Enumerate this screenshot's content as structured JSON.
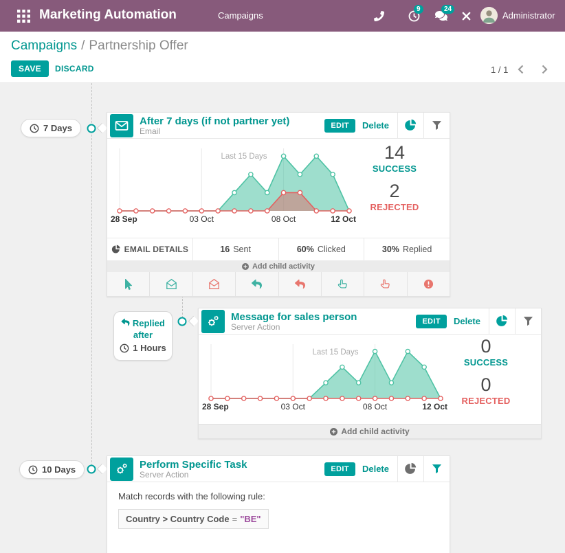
{
  "topbar": {
    "app_title": "Marketing Automation",
    "menu_item": "Campaigns",
    "activities_count": "9",
    "messages_count": "24",
    "user_name": "Administrator"
  },
  "control_panel": {
    "breadcrumb_parent": "Campaigns",
    "breadcrumb_sep": "/",
    "breadcrumb_current": "Partnership Offer",
    "save_label": "SAVE",
    "discard_label": "DISCARD",
    "pager_value": "1 / 1"
  },
  "colors": {
    "topbar": "#875A7B",
    "primary": "#00A09D",
    "link": "#00968F",
    "danger": "#E4605F",
    "chart_success": "#4EC2A4",
    "chart_rejected": "#E4605F",
    "canvas_bg": "#F0F0F0"
  },
  "activities": [
    {
      "badge_text": "7 Days",
      "title": "After 7 days (if not partner yet)",
      "subtitle": "Email",
      "edit_label": "EDIT",
      "delete_label": "Delete",
      "success_value": "14",
      "success_label": "SUCCESS",
      "rejected_value": "2",
      "rejected_label": "REJECTED",
      "details_header": "EMAIL DETAILS",
      "details": [
        {
          "value": "16",
          "label": "Sent"
        },
        {
          "value": "60%",
          "label": "Clicked"
        },
        {
          "value": "30%",
          "label": "Replied"
        }
      ],
      "add_child_label": "Add child activity",
      "quick_add_icons": [
        {
          "name": "mouse-cursor",
          "glyph": "mouse-cursor",
          "tone": "ok"
        },
        {
          "name": "email-opened",
          "glyph": "email-open",
          "tone": "ok"
        },
        {
          "name": "email-not-opened",
          "glyph": "email-open",
          "tone": "ko"
        },
        {
          "name": "replied",
          "glyph": "reply",
          "tone": "ok"
        },
        {
          "name": "not-replied",
          "glyph": "reply",
          "tone": "ko"
        },
        {
          "name": "clicked",
          "glyph": "hand-pointer",
          "tone": "ok"
        },
        {
          "name": "not-clicked",
          "glyph": "hand-pointer",
          "tone": "ko"
        },
        {
          "name": "bounced",
          "glyph": "exclamation-circle",
          "tone": "ko"
        }
      ]
    },
    {
      "badge_trigger_lines": "Replied after",
      "badge_text": "1 Hours",
      "title": "Message for sales person",
      "subtitle": "Server Action",
      "edit_label": "EDIT",
      "delete_label": "Delete",
      "success_value": "0",
      "success_label": "SUCCESS",
      "rejected_value": "0",
      "rejected_label": "REJECTED",
      "add_child_label": "Add child activity"
    },
    {
      "badge_text": "10 Days",
      "title": "Perform Specific Task",
      "subtitle": "Server Action",
      "edit_label": "EDIT",
      "delete_label": "Delete",
      "filter_intro": "Match records with the following rule:",
      "rule_field": "Country > Country Code",
      "rule_op": "=",
      "rule_value": "\"BE\""
    }
  ],
  "chart_data": [
    {
      "type": "area",
      "annotation": "Last 15 Days",
      "x": [
        "28 Sep",
        "29 Sep",
        "30 Sep",
        "01 Oct",
        "02 Oct",
        "03 Oct",
        "04 Oct",
        "05 Oct",
        "06 Oct",
        "07 Oct",
        "08 Oct",
        "09 Oct",
        "10 Oct",
        "11 Oct",
        "12 Oct"
      ],
      "ticks": [
        {
          "i": 0,
          "label": "28 Sep",
          "bold": true,
          "align": "start"
        },
        {
          "i": 5,
          "label": "03 Oct",
          "bold": false,
          "align": "middle"
        },
        {
          "i": 10,
          "label": "08 Oct",
          "bold": false,
          "align": "middle"
        },
        {
          "i": 14,
          "label": "12 Oct",
          "bold": true,
          "align": "end"
        }
      ],
      "ylim": [
        0,
        3.2
      ],
      "grid": true,
      "series": [
        {
          "name": "Success",
          "color": "#4EC2A4",
          "fill_opacity": 0.55,
          "markers": "nonzero",
          "values": [
            0,
            0,
            0,
            0,
            0,
            0,
            0,
            1,
            2,
            1,
            3,
            2,
            3,
            2,
            0
          ]
        },
        {
          "name": "Rejected",
          "color": "#E4605F",
          "fill_opacity": 0.45,
          "markers": "all",
          "values": [
            0,
            0,
            0,
            0,
            0,
            0,
            0,
            0,
            0,
            0,
            1,
            1,
            0,
            0,
            0
          ]
        }
      ]
    },
    {
      "type": "area",
      "annotation": "Last 15 Days",
      "x": [
        "28 Sep",
        "29 Sep",
        "30 Sep",
        "01 Oct",
        "02 Oct",
        "03 Oct",
        "04 Oct",
        "05 Oct",
        "06 Oct",
        "07 Oct",
        "08 Oct",
        "09 Oct",
        "10 Oct",
        "11 Oct",
        "12 Oct"
      ],
      "ticks": [
        {
          "i": 0,
          "label": "28 Sep",
          "bold": true,
          "align": "start"
        },
        {
          "i": 5,
          "label": "03 Oct",
          "bold": false,
          "align": "middle"
        },
        {
          "i": 10,
          "label": "08 Oct",
          "bold": false,
          "align": "middle"
        },
        {
          "i": 14,
          "label": "12 Oct",
          "bold": true,
          "align": "end"
        }
      ],
      "ylim": [
        0,
        3.2
      ],
      "grid": true,
      "series": [
        {
          "name": "Success",
          "color": "#4EC2A4",
          "fill_opacity": 0.55,
          "markers": "nonzero",
          "values": [
            0,
            0,
            0,
            0,
            0,
            0,
            0,
            1,
            2,
            1,
            3,
            1,
            3,
            2,
            0
          ]
        },
        {
          "name": "Rejected",
          "color": "#E4605F",
          "fill_opacity": 0.45,
          "markers": "all",
          "values": [
            0,
            0,
            0,
            0,
            0,
            0,
            0,
            0,
            0,
            0,
            0,
            0,
            0,
            0,
            0
          ]
        }
      ]
    }
  ]
}
